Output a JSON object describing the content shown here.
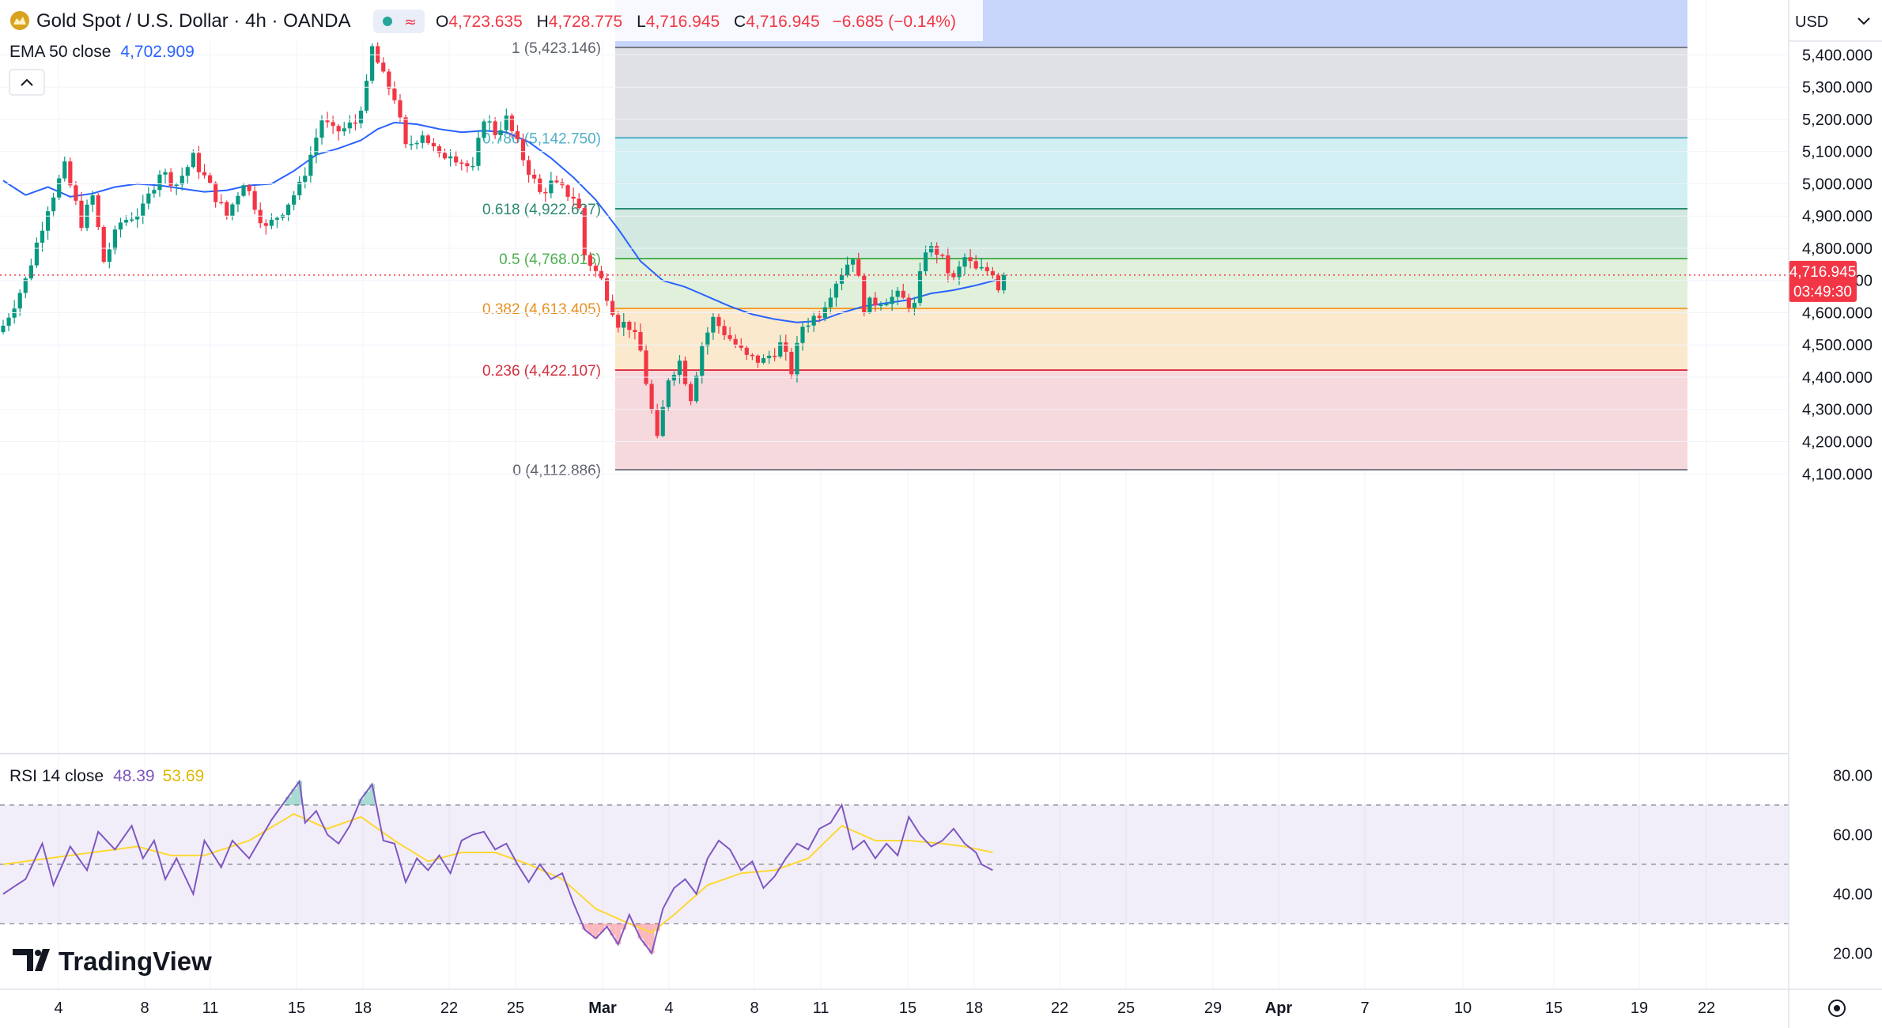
{
  "legend": {
    "symbol": "Gold Spot / U.S. Dollar · 4h · OANDA",
    "o_label": "O",
    "o": "4,723.635",
    "h_label": "H",
    "h": "4,728.775",
    "l_label": "L",
    "l": "4,716.945",
    "c_label": "C",
    "c": "4,716.945",
    "change": "−6.685 (−0.14%)",
    "ema_label": "EMA 50 close",
    "ema_value": "4,702.909",
    "rsi_label": "RSI 14 close",
    "rsi_value": "48.39",
    "rsi_ma_value": "53.69"
  },
  "currency": "USD",
  "brand": "TradingView",
  "price_tag": {
    "value": "4,716.945",
    "countdown": "03:49:30"
  },
  "colors": {
    "up": "#089981",
    "down": "#f23645",
    "ema": "#2962ff",
    "rsi": "#7e57c2",
    "rsi_ma": "#fdd835",
    "price_tag": "#f23645"
  },
  "chart_data": {
    "type": "candlestick",
    "instrument": "Gold Spot / U.S. Dollar",
    "timeframe": "4h",
    "price_axis": {
      "min": 4075,
      "max": 5480,
      "ticks": [
        "4,100.000",
        "4,200.000",
        "4,300.000",
        "4,400.000",
        "4,500.000",
        "4,600.000",
        "4,700.000",
        "4,800.000",
        "4,900.000",
        "5,000.000",
        "5,100.000",
        "5,200.000",
        "5,300.000",
        "5,400.000"
      ]
    },
    "rsi_axis": {
      "min": 10,
      "max": 86,
      "ticks": [
        "20.00",
        "40.00",
        "60.00",
        "80.00"
      ],
      "bands": [
        30,
        70
      ],
      "mid": 50
    },
    "x_axis_labels": [
      "4",
      "8",
      "11",
      "15",
      "18",
      "22",
      "25",
      "Mar",
      "4",
      "8",
      "11",
      "15",
      "18",
      "22",
      "25",
      "29",
      "Apr",
      "7",
      "10",
      "15",
      "19",
      "22"
    ],
    "fib_levels": [
      {
        "ratio": "1",
        "label": "1 (5,423.146)",
        "price": 5423.146
      },
      {
        "ratio": "0.786",
        "label": "0.786 (5,142.750)",
        "price": 5142.75
      },
      {
        "ratio": "0.618",
        "label": "0.618 (4,922.627)",
        "price": 4922.627
      },
      {
        "ratio": "0.5",
        "label": "0.5 (4,768.016)",
        "price": 4768.016
      },
      {
        "ratio": "0.382",
        "label": "0.382 (4,613.405)",
        "price": 4613.405
      },
      {
        "ratio": "0.236",
        "label": "0.236 (4,422.107)",
        "price": 4422.107
      },
      {
        "ratio": "0",
        "label": "0 (4,112.886)",
        "price": 4112.886
      }
    ],
    "price_anchors": [
      [
        0,
        4560
      ],
      [
        4,
        4700
      ],
      [
        8,
        4930
      ],
      [
        11,
        5050
      ],
      [
        14,
        4880
      ],
      [
        16,
        4960
      ],
      [
        18,
        4760
      ],
      [
        21,
        4880
      ],
      [
        25,
        4920
      ],
      [
        28,
        5040
      ],
      [
        31,
        5000
      ],
      [
        34,
        5080
      ],
      [
        37,
        4990
      ],
      [
        40,
        4900
      ],
      [
        43,
        5010
      ],
      [
        47,
        4860
      ],
      [
        50,
        4920
      ],
      [
        53,
        4990
      ],
      [
        55,
        5090
      ],
      [
        57,
        5200
      ],
      [
        59,
        5160
      ],
      [
        61,
        5170
      ],
      [
        63,
        5190
      ],
      [
        65,
        5300
      ],
      [
        66,
        5420
      ],
      [
        68,
        5330
      ],
      [
        70,
        5270
      ],
      [
        72,
        5110
      ],
      [
        75,
        5160
      ],
      [
        78,
        5080
      ],
      [
        80,
        5100
      ],
      [
        82,
        5070
      ],
      [
        84,
        5040
      ],
      [
        86,
        5210
      ],
      [
        88,
        5160
      ],
      [
        90,
        5200
      ],
      [
        93,
        5080
      ],
      [
        96,
        4970
      ],
      [
        98,
        5000
      ],
      [
        100,
        4980
      ],
      [
        102,
        4960
      ],
      [
        103,
        4920
      ],
      [
        104,
        4780
      ],
      [
        107,
        4700
      ],
      [
        110,
        4570
      ],
      [
        112,
        4560
      ],
      [
        114,
        4480
      ],
      [
        117,
        4200
      ],
      [
        119,
        4400
      ],
      [
        121,
        4450
      ],
      [
        123,
        4340
      ],
      [
        125,
        4500
      ],
      [
        127,
        4580
      ],
      [
        130,
        4520
      ],
      [
        133,
        4460
      ],
      [
        136,
        4450
      ],
      [
        139,
        4500
      ],
      [
        141,
        4420
      ],
      [
        143,
        4560
      ],
      [
        146,
        4600
      ],
      [
        149,
        4700
      ],
      [
        152,
        4780
      ],
      [
        154,
        4620
      ],
      [
        157,
        4640
      ],
      [
        160,
        4650
      ],
      [
        163,
        4620
      ],
      [
        165,
        4800
      ],
      [
        167,
        4790
      ],
      [
        170,
        4700
      ],
      [
        172,
        4770
      ],
      [
        174,
        4730
      ],
      [
        177,
        4730
      ],
      [
        178,
        4680
      ],
      [
        179,
        4717
      ]
    ],
    "ema_anchors": [
      [
        0,
        5010
      ],
      [
        4,
        4965
      ],
      [
        8,
        4990
      ],
      [
        12,
        4960
      ],
      [
        16,
        4970
      ],
      [
        20,
        4990
      ],
      [
        24,
        5000
      ],
      [
        28,
        4995
      ],
      [
        32,
        4985
      ],
      [
        36,
        4975
      ],
      [
        40,
        4980
      ],
      [
        44,
        4995
      ],
      [
        48,
        5000
      ],
      [
        52,
        5040
      ],
      [
        56,
        5090
      ],
      [
        60,
        5110
      ],
      [
        64,
        5135
      ],
      [
        67,
        5170
      ],
      [
        70,
        5190
      ],
      [
        74,
        5185
      ],
      [
        78,
        5170
      ],
      [
        82,
        5160
      ],
      [
        86,
        5165
      ],
      [
        90,
        5160
      ],
      [
        94,
        5130
      ],
      [
        98,
        5080
      ],
      [
        102,
        5020
      ],
      [
        106,
        4950
      ],
      [
        110,
        4860
      ],
      [
        114,
        4760
      ],
      [
        118,
        4700
      ],
      [
        122,
        4680
      ],
      [
        126,
        4650
      ],
      [
        130,
        4620
      ],
      [
        134,
        4595
      ],
      [
        138,
        4580
      ],
      [
        142,
        4570
      ],
      [
        146,
        4575
      ],
      [
        150,
        4600
      ],
      [
        154,
        4620
      ],
      [
        158,
        4630
      ],
      [
        162,
        4640
      ],
      [
        166,
        4660
      ],
      [
        170,
        4670
      ],
      [
        174,
        4685
      ],
      [
        178,
        4703
      ]
    ],
    "rsi_anchors": [
      [
        0,
        40
      ],
      [
        4,
        45
      ],
      [
        7,
        57
      ],
      [
        9,
        43
      ],
      [
        12,
        56
      ],
      [
        15,
        48
      ],
      [
        17,
        61
      ],
      [
        20,
        55
      ],
      [
        23,
        63
      ],
      [
        25,
        52
      ],
      [
        27,
        58
      ],
      [
        29,
        45
      ],
      [
        31,
        52
      ],
      [
        34,
        40
      ],
      [
        36,
        58
      ],
      [
        39,
        49
      ],
      [
        41,
        58
      ],
      [
        44,
        52
      ],
      [
        48,
        65
      ],
      [
        53,
        78
      ],
      [
        54,
        64
      ],
      [
        56,
        68
      ],
      [
        58,
        60
      ],
      [
        60,
        57
      ],
      [
        62,
        63
      ],
      [
        64,
        72
      ],
      [
        66,
        77
      ],
      [
        68,
        58
      ],
      [
        70,
        57
      ],
      [
        72,
        44
      ],
      [
        74,
        52
      ],
      [
        76,
        48
      ],
      [
        78,
        53
      ],
      [
        80,
        47
      ],
      [
        82,
        58
      ],
      [
        84,
        60
      ],
      [
        86,
        61
      ],
      [
        88,
        55
      ],
      [
        90,
        57
      ],
      [
        92,
        50
      ],
      [
        94,
        44
      ],
      [
        96,
        50
      ],
      [
        98,
        45
      ],
      [
        100,
        47
      ],
      [
        102,
        37
      ],
      [
        104,
        28
      ],
      [
        106,
        25
      ],
      [
        108,
        29
      ],
      [
        110,
        23
      ],
      [
        112,
        33
      ],
      [
        114,
        25
      ],
      [
        116,
        20
      ],
      [
        118,
        35
      ],
      [
        120,
        42
      ],
      [
        122,
        45
      ],
      [
        124,
        40
      ],
      [
        126,
        52
      ],
      [
        128,
        58
      ],
      [
        130,
        55
      ],
      [
        132,
        48
      ],
      [
        134,
        51
      ],
      [
        136,
        42
      ],
      [
        138,
        46
      ],
      [
        140,
        52
      ],
      [
        142,
        57
      ],
      [
        144,
        55
      ],
      [
        146,
        62
      ],
      [
        148,
        64
      ],
      [
        150,
        70
      ],
      [
        152,
        55
      ],
      [
        154,
        58
      ],
      [
        156,
        52
      ],
      [
        158,
        57
      ],
      [
        160,
        53
      ],
      [
        162,
        66
      ],
      [
        164,
        60
      ],
      [
        166,
        56
      ],
      [
        168,
        58
      ],
      [
        170,
        62
      ],
      [
        172,
        57
      ],
      [
        174,
        54
      ],
      [
        175,
        50
      ],
      [
        177,
        48
      ]
    ],
    "rsi_ma_anchors": [
      [
        0,
        50
      ],
      [
        8,
        52
      ],
      [
        16,
        54
      ],
      [
        24,
        56
      ],
      [
        30,
        53
      ],
      [
        36,
        53
      ],
      [
        44,
        58
      ],
      [
        52,
        67
      ],
      [
        58,
        62
      ],
      [
        64,
        66
      ],
      [
        70,
        58
      ],
      [
        76,
        51
      ],
      [
        82,
        54
      ],
      [
        88,
        54
      ],
      [
        94,
        50
      ],
      [
        100,
        45
      ],
      [
        106,
        35
      ],
      [
        112,
        30
      ],
      [
        116,
        27
      ],
      [
        120,
        33
      ],
      [
        126,
        43
      ],
      [
        132,
        47
      ],
      [
        138,
        48
      ],
      [
        144,
        52
      ],
      [
        150,
        63
      ],
      [
        156,
        58
      ],
      [
        162,
        58
      ],
      [
        168,
        57
      ],
      [
        172,
        56
      ],
      [
        177,
        54
      ]
    ]
  }
}
